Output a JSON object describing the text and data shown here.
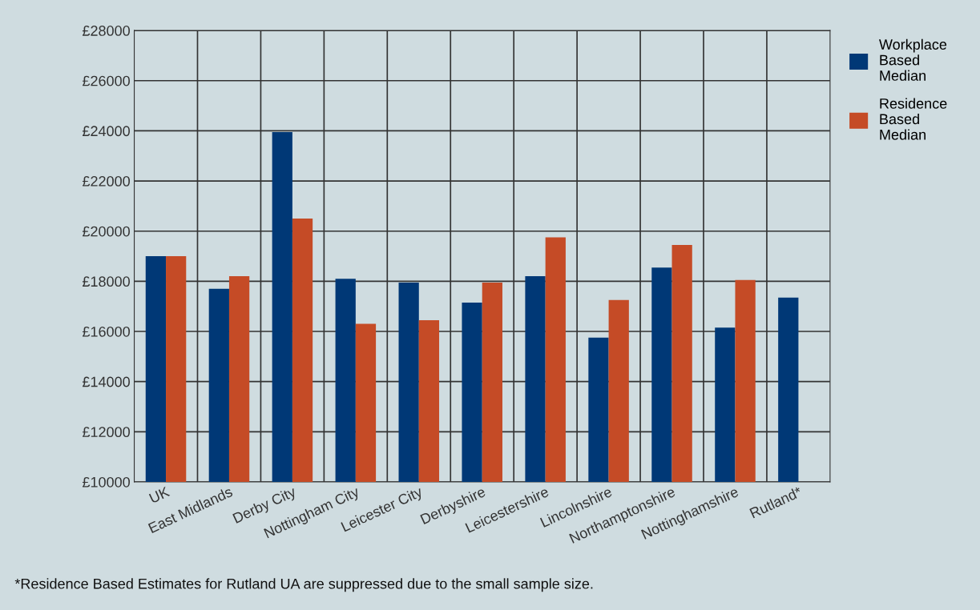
{
  "chart_data": {
    "type": "bar",
    "categories": [
      "UK",
      "East Midlands",
      "Derby City",
      "Nottingham City",
      "Leicester City",
      "Derbyshire",
      "Leicestershire",
      "Lincolnshire",
      "Northamptonshire",
      "Nottinghamshire",
      "Rutland*"
    ],
    "series": [
      {
        "name": "Workplace\nBased\nMedian",
        "color": "#003876",
        "values": [
          19000,
          17700,
          23950,
          18100,
          17950,
          17150,
          18200,
          15750,
          18550,
          16150,
          17350
        ]
      },
      {
        "name": "Residence\nBased\nMedian",
        "color": "#c54b26",
        "values": [
          19000,
          18200,
          20500,
          16300,
          16450,
          17950,
          19750,
          17250,
          19450,
          18050,
          null
        ]
      }
    ],
    "ylim": [
      10000,
      28000
    ],
    "yticks": [
      {
        "value": 10000,
        "label": "£10000"
      },
      {
        "value": 12000,
        "label": "£12000"
      },
      {
        "value": 14000,
        "label": "£14000"
      },
      {
        "value": 16000,
        "label": "£16000"
      },
      {
        "value": 18000,
        "label": "£18000"
      },
      {
        "value": 20000,
        "label": "£20000"
      },
      {
        "value": 22000,
        "label": "£22000"
      },
      {
        "value": 24000,
        "label": "£24000"
      },
      {
        "value": 26000,
        "label": "£26000"
      },
      {
        "value": 28000,
        "label": "£28000"
      }
    ],
    "grid": true,
    "legend": "top right",
    "annotations": [
      "*Residence Based Estimates for Rutland UA are suppressed due to the small sample size."
    ]
  }
}
